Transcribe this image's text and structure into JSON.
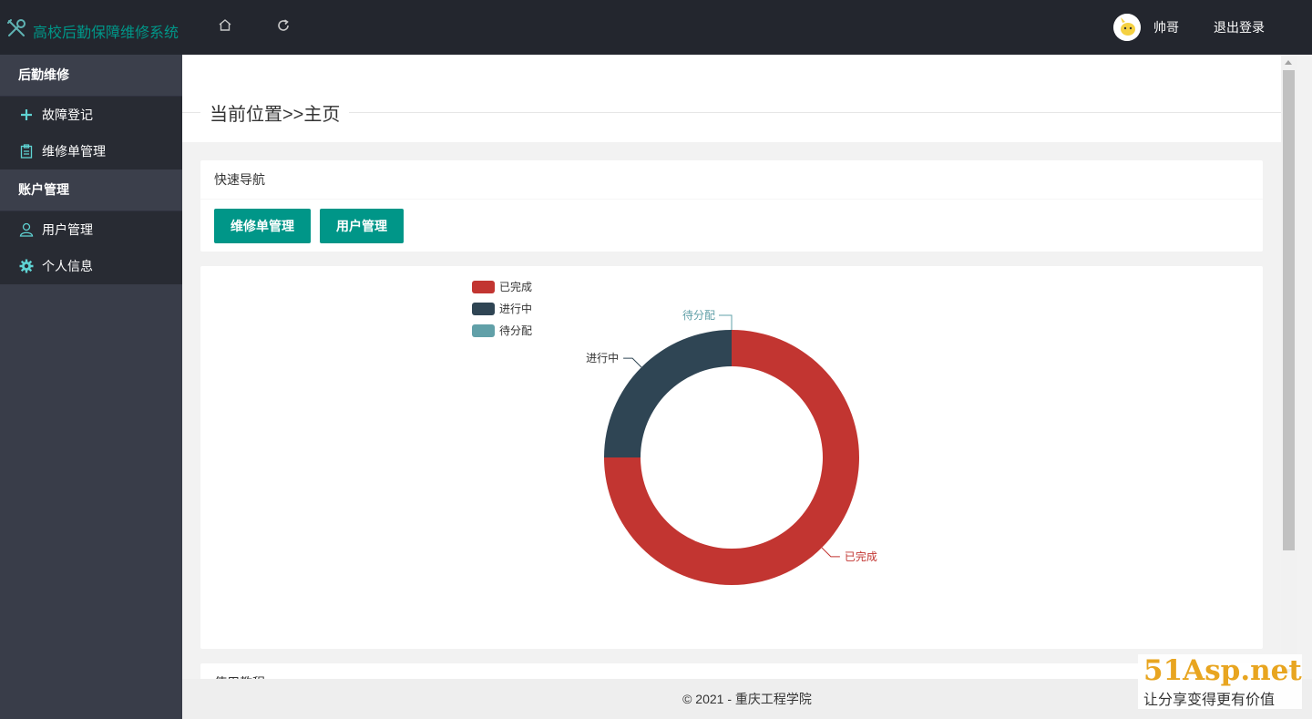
{
  "header": {
    "title": "高校后勤保障维修系统",
    "username": "帅哥",
    "logout_label": "退出登录",
    "icons": {
      "logo": "tools-icon",
      "home": "home-icon",
      "refresh": "refresh-icon"
    }
  },
  "sidebar": {
    "groups": [
      {
        "label": "后勤维修",
        "items": [
          {
            "label": "故障登记",
            "icon": "plus-icon"
          },
          {
            "label": "维修单管理",
            "icon": "clipboard-icon"
          }
        ]
      },
      {
        "label": "账户管理",
        "items": [
          {
            "label": "用户管理",
            "icon": "user-icon"
          },
          {
            "label": "个人信息",
            "icon": "gear-icon"
          }
        ]
      }
    ]
  },
  "breadcrumb": "当前位置>>主页",
  "quick_nav": {
    "title": "快速导航",
    "buttons": [
      "维修单管理",
      "用户管理"
    ]
  },
  "next_card_title": "使用教程",
  "chart_data": {
    "type": "pie",
    "donut": true,
    "categories": [
      "已完成",
      "进行中",
      "待分配"
    ],
    "values": [
      3,
      1,
      0
    ],
    "colors": [
      "#c23531",
      "#2f4554",
      "#61a0a8"
    ],
    "legend": "top-left"
  },
  "footer": "© 2021 - 重庆工程学院",
  "watermark": {
    "top": "51Asp.net",
    "bottom": "让分享变得更有价值"
  }
}
